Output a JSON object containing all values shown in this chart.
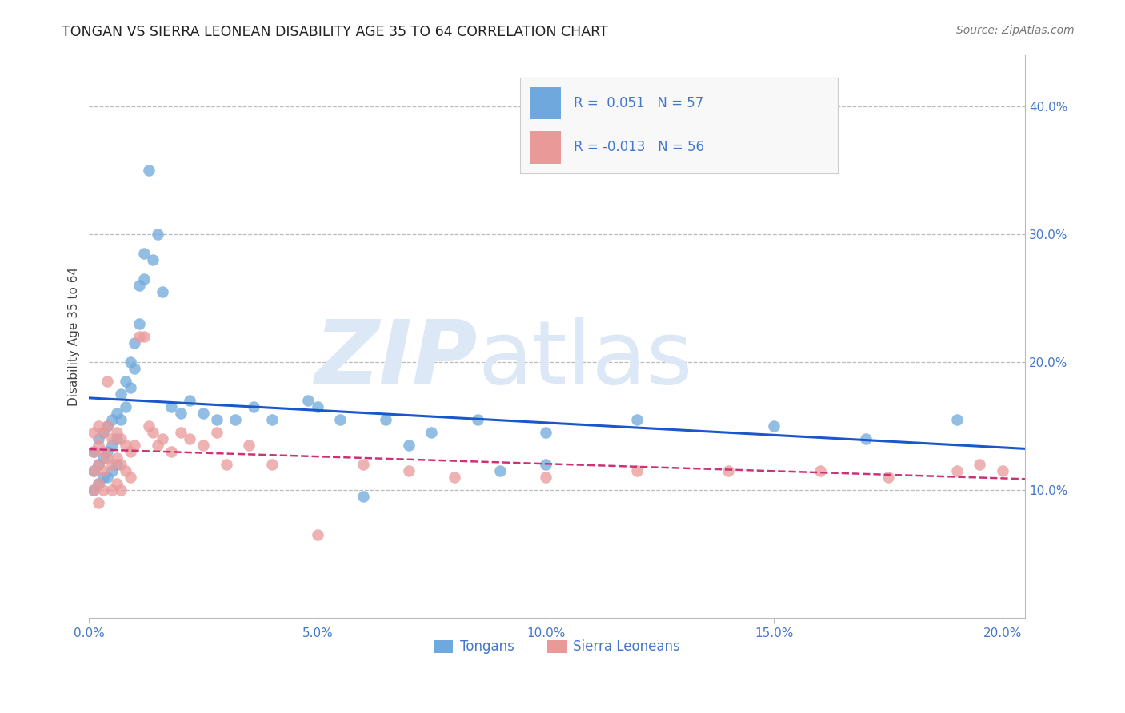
{
  "title": "TONGAN VS SIERRA LEONEAN DISABILITY AGE 35 TO 64 CORRELATION CHART",
  "source": "Source: ZipAtlas.com",
  "ylabel": "Disability Age 35 to 64",
  "xlim": [
    0.0,
    0.205
  ],
  "ylim": [
    0.0,
    0.44
  ],
  "blue_color": "#6fa8dc",
  "pink_color": "#ea9999",
  "blue_line_color": "#1a56cc",
  "pink_line_color": "#cc3377",
  "tongans_label": "Tongans",
  "sierraleoneans_label": "Sierra Leoneans",
  "background_color": "#ffffff",
  "grid_color": "#bbbbbb",
  "title_color": "#222222",
  "axis_tick_color": "#4477cc",
  "watermark_zip_color": "#dce8f5",
  "watermark_atlas_color": "#dce8f5",
  "blue_x": [
    0.001,
    0.001,
    0.001,
    0.002,
    0.002,
    0.002,
    0.003,
    0.003,
    0.003,
    0.004,
    0.004,
    0.004,
    0.005,
    0.005,
    0.005,
    0.006,
    0.006,
    0.006,
    0.007,
    0.007,
    0.008,
    0.008,
    0.009,
    0.009,
    0.01,
    0.01,
    0.011,
    0.011,
    0.012,
    0.012,
    0.013,
    0.014,
    0.015,
    0.016,
    0.018,
    0.02,
    0.022,
    0.025,
    0.028,
    0.032,
    0.036,
    0.04,
    0.048,
    0.055,
    0.065,
    0.075,
    0.085,
    0.1,
    0.12,
    0.15,
    0.17,
    0.19,
    0.1,
    0.06,
    0.07,
    0.09,
    0.05
  ],
  "blue_y": [
    0.13,
    0.115,
    0.1,
    0.14,
    0.12,
    0.105,
    0.145,
    0.125,
    0.11,
    0.15,
    0.13,
    0.11,
    0.155,
    0.135,
    0.115,
    0.16,
    0.14,
    0.12,
    0.175,
    0.155,
    0.185,
    0.165,
    0.2,
    0.18,
    0.215,
    0.195,
    0.23,
    0.26,
    0.285,
    0.265,
    0.35,
    0.28,
    0.3,
    0.255,
    0.165,
    0.16,
    0.17,
    0.16,
    0.155,
    0.155,
    0.165,
    0.155,
    0.17,
    0.155,
    0.155,
    0.145,
    0.155,
    0.145,
    0.155,
    0.15,
    0.14,
    0.155,
    0.12,
    0.095,
    0.135,
    0.115,
    0.165
  ],
  "pink_x": [
    0.001,
    0.001,
    0.001,
    0.001,
    0.002,
    0.002,
    0.002,
    0.002,
    0.002,
    0.003,
    0.003,
    0.003,
    0.003,
    0.004,
    0.004,
    0.004,
    0.005,
    0.005,
    0.005,
    0.006,
    0.006,
    0.006,
    0.007,
    0.007,
    0.007,
    0.008,
    0.008,
    0.009,
    0.009,
    0.01,
    0.011,
    0.012,
    0.013,
    0.014,
    0.015,
    0.016,
    0.018,
    0.02,
    0.022,
    0.025,
    0.028,
    0.03,
    0.035,
    0.04,
    0.05,
    0.06,
    0.07,
    0.08,
    0.1,
    0.12,
    0.14,
    0.16,
    0.175,
    0.19,
    0.2,
    0.195
  ],
  "pink_y": [
    0.145,
    0.13,
    0.115,
    0.1,
    0.15,
    0.135,
    0.12,
    0.105,
    0.09,
    0.145,
    0.13,
    0.115,
    0.1,
    0.185,
    0.15,
    0.125,
    0.14,
    0.12,
    0.1,
    0.145,
    0.125,
    0.105,
    0.14,
    0.12,
    0.1,
    0.135,
    0.115,
    0.13,
    0.11,
    0.135,
    0.22,
    0.22,
    0.15,
    0.145,
    0.135,
    0.14,
    0.13,
    0.145,
    0.14,
    0.135,
    0.145,
    0.12,
    0.135,
    0.12,
    0.065,
    0.12,
    0.115,
    0.11,
    0.11,
    0.115,
    0.115,
    0.115,
    0.11,
    0.115,
    0.115,
    0.12
  ]
}
